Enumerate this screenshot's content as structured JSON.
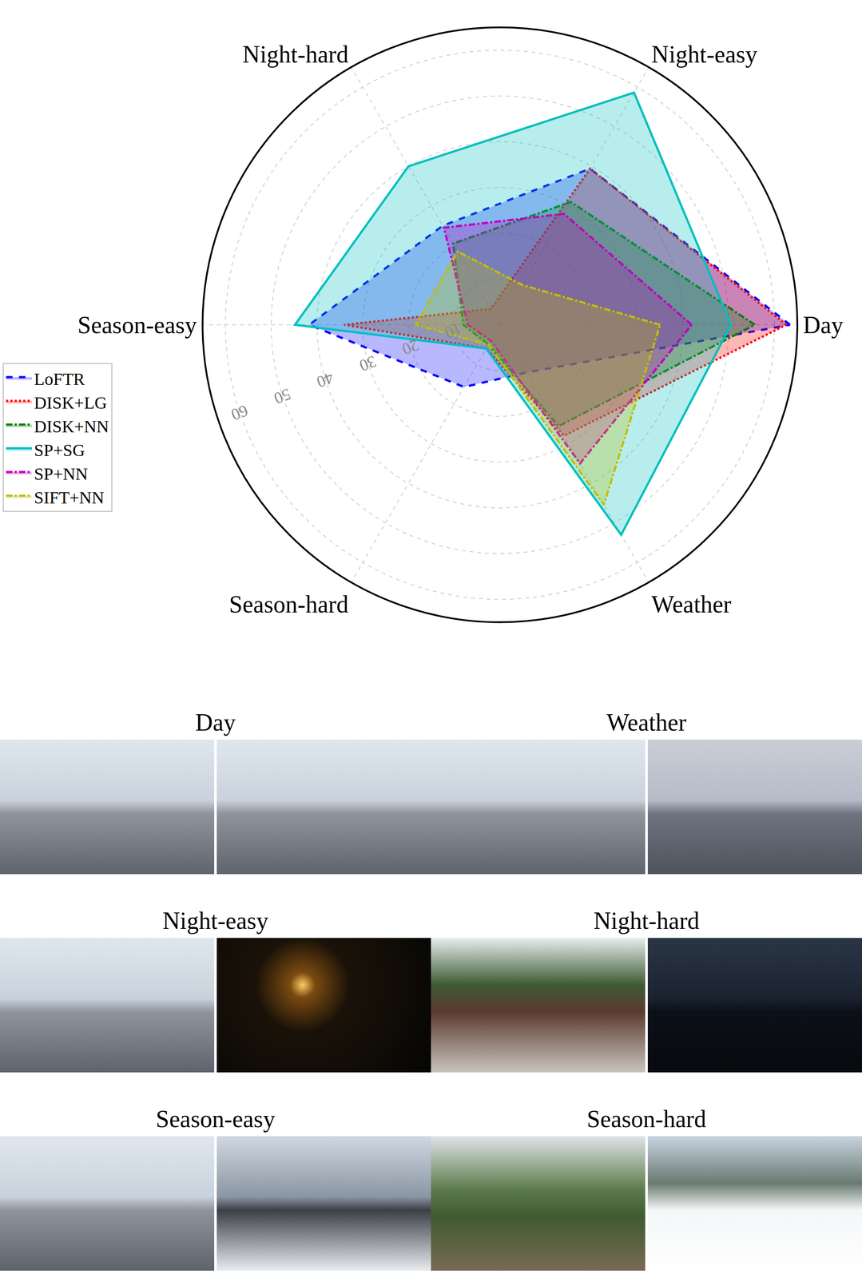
{
  "chart_data": {
    "type": "radar",
    "categories": [
      "Day",
      "Night-easy",
      "Night-hard",
      "Season-easy",
      "Season-hard",
      "Weather"
    ],
    "series": [
      {
        "name": "LoFTR",
        "color": "#0000ff",
        "line_style": "dash",
        "values": [
          63.4,
          39.4,
          25,
          41.7,
          15.7,
          12
        ]
      },
      {
        "name": "DISK+LG",
        "color": "#ff0000",
        "line_style": "dot",
        "values": [
          62.6,
          39.4,
          4,
          34,
          6,
          28
        ]
      },
      {
        "name": "DISK+NN",
        "color": "#007f00",
        "line_style": "dashdot",
        "values": [
          55.7,
          31,
          20.5,
          8,
          5,
          25.6
        ]
      },
      {
        "name": "SP+SG",
        "color": "#00bfbf",
        "line_style": "solid",
        "values": [
          50.5,
          58.6,
          40,
          44.8,
          6,
          53
        ]
      },
      {
        "name": "SP+NN",
        "color": "#bf00bf",
        "line_style": "dashdot",
        "values": [
          41.9,
          28,
          24.5,
          7,
          4,
          35
        ]
      },
      {
        "name": "SIFT+NN",
        "color": "#bfbf00",
        "line_style": "dashdot",
        "values": [
          35,
          10,
          18.5,
          18.4,
          5,
          45.4
        ]
      }
    ],
    "ylim": [
      0,
      65
    ],
    "yticks": [
      10,
      20,
      30,
      40,
      50,
      60
    ],
    "grid": true,
    "legend": "left"
  },
  "image_pairs": [
    "Day",
    "Weather",
    "Night-easy",
    "Night-hard",
    "Season-easy",
    "Season-hard"
  ]
}
